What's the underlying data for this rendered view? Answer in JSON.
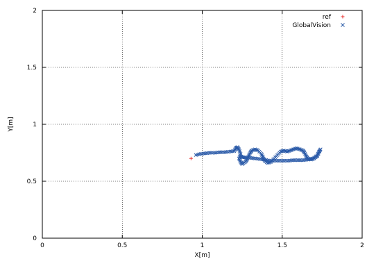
{
  "chart_data": {
    "type": "scatter",
    "xlabel": "X[m]",
    "ylabel": "Y[m]",
    "xlim": [
      0,
      2
    ],
    "ylim": [
      0,
      2
    ],
    "xticks": [
      "0",
      "0.5",
      "1",
      "1.5",
      "2"
    ],
    "yticks": [
      "0",
      "0.5",
      "1",
      "1.5",
      "2"
    ],
    "grid": true,
    "legend_position": "top-right",
    "series": [
      {
        "name": "ref",
        "marker": "plus",
        "color": "#e8312f",
        "points": [
          [
            0.93,
            0.7
          ]
        ]
      },
      {
        "name": "GlobalVision",
        "marker": "x",
        "color": "#2a5aa8",
        "points": [
          [
            0.96,
            0.73
          ],
          [
            0.99,
            0.74
          ],
          [
            1.02,
            0.745
          ],
          [
            1.05,
            0.75
          ],
          [
            1.08,
            0.75
          ],
          [
            1.11,
            0.755
          ],
          [
            1.14,
            0.755
          ],
          [
            1.17,
            0.76
          ],
          [
            1.2,
            0.765
          ],
          [
            1.21,
            0.79
          ],
          [
            1.22,
            0.8
          ],
          [
            1.23,
            0.78
          ],
          [
            1.24,
            0.74
          ],
          [
            1.23,
            0.7
          ],
          [
            1.24,
            0.67
          ],
          [
            1.25,
            0.65
          ],
          [
            1.27,
            0.67
          ],
          [
            1.28,
            0.69
          ],
          [
            1.29,
            0.72
          ],
          [
            1.3,
            0.75
          ],
          [
            1.31,
            0.77
          ],
          [
            1.33,
            0.78
          ],
          [
            1.35,
            0.77
          ],
          [
            1.37,
            0.74
          ],
          [
            1.38,
            0.71
          ],
          [
            1.39,
            0.68
          ],
          [
            1.41,
            0.66
          ],
          [
            1.43,
            0.67
          ],
          [
            1.45,
            0.7
          ],
          [
            1.47,
            0.73
          ],
          [
            1.49,
            0.76
          ],
          [
            1.51,
            0.77
          ],
          [
            1.53,
            0.76
          ],
          [
            1.55,
            0.77
          ],
          [
            1.57,
            0.78
          ],
          [
            1.59,
            0.79
          ],
          [
            1.61,
            0.78
          ],
          [
            1.63,
            0.77
          ],
          [
            1.64,
            0.75
          ],
          [
            1.65,
            0.72
          ],
          [
            1.66,
            0.7
          ],
          [
            1.68,
            0.69
          ],
          [
            1.7,
            0.7
          ],
          [
            1.72,
            0.73
          ],
          [
            1.73,
            0.76
          ],
          [
            1.74,
            0.78
          ],
          [
            1.72,
            0.72
          ],
          [
            1.69,
            0.7
          ],
          [
            1.66,
            0.69
          ],
          [
            1.63,
            0.685
          ],
          [
            1.6,
            0.685
          ],
          [
            1.57,
            0.685
          ],
          [
            1.54,
            0.68
          ],
          [
            1.51,
            0.68
          ],
          [
            1.48,
            0.68
          ],
          [
            1.45,
            0.68
          ],
          [
            1.42,
            0.68
          ],
          [
            1.39,
            0.69
          ],
          [
            1.36,
            0.695
          ],
          [
            1.33,
            0.7
          ],
          [
            1.3,
            0.705
          ],
          [
            1.27,
            0.71
          ],
          [
            1.25,
            0.71
          ],
          [
            1.24,
            0.72
          ]
        ]
      }
    ]
  }
}
